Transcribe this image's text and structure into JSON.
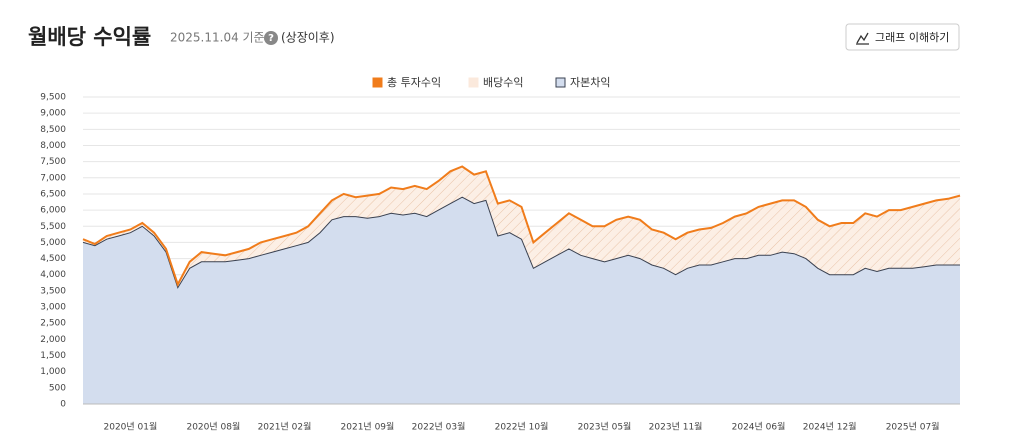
{
  "header": {
    "title": "월배당 수익률",
    "date": "2025.11.04 기준",
    "help": "?",
    "note": "(상장이후)",
    "button": "그래프 이해하기"
  },
  "chart_data": {
    "type": "line",
    "categories": [
      null,
      null,
      null,
      null,
      "2020년 01월",
      null,
      null,
      null,
      null,
      null,
      null,
      "2020년 08월",
      null,
      null,
      null,
      null,
      null,
      "2021년 02월",
      null,
      null,
      null,
      null,
      null,
      null,
      "2021년 09월",
      null,
      null,
      null,
      null,
      null,
      "2022년 03월",
      null,
      null,
      null,
      null,
      null,
      null,
      "2022년 10월",
      null,
      null,
      null,
      null,
      null,
      null,
      "2023년 05월",
      null,
      null,
      null,
      null,
      null,
      "2023년 11월",
      null,
      null,
      null,
      null,
      null,
      null,
      "2024년 06월",
      null,
      null,
      null,
      null,
      null,
      "2024년 12월",
      null,
      null,
      null,
      null,
      null,
      null,
      "2025년 07월",
      null,
      null,
      null,
      null
    ],
    "series": [
      {
        "name": "총 투자수익",
        "color": "#f07c1b",
        "values": [
          5100,
          4950,
          5200,
          5300,
          5400,
          5600,
          5300,
          4800,
          3700,
          4400,
          4700,
          4650,
          4600,
          4700,
          4800,
          5000,
          5100,
          5200,
          5300,
          5500,
          5900,
          6300,
          6500,
          6400,
          6450,
          6500,
          6700,
          6650,
          6750,
          6650,
          6900,
          7200,
          7350,
          7100,
          7200,
          6200,
          6300,
          6100,
          5000,
          5300,
          5600,
          5900,
          5700,
          5500,
          5500,
          5700,
          5800,
          5700,
          5400,
          5300,
          5100,
          5300,
          5400,
          5450,
          5600,
          5800,
          5900,
          6100,
          6200,
          6300,
          6300,
          6100,
          5700,
          5500,
          5600,
          5600,
          5900,
          5800,
          6000,
          6000,
          6100,
          6200,
          6300,
          6350,
          6450
        ]
      },
      {
        "name": "자본차익",
        "color": "#d3ddee",
        "values": [
          5000,
          4900,
          5100,
          5200,
          5300,
          5500,
          5200,
          4700,
          3600,
          4200,
          4400,
          4400,
          4400,
          4450,
          4500,
          4600,
          4700,
          4800,
          4900,
          5000,
          5300,
          5700,
          5800,
          5800,
          5750,
          5800,
          5900,
          5850,
          5900,
          5800,
          6000,
          6200,
          6400,
          6200,
          6300,
          5200,
          5300,
          5100,
          4200,
          4400,
          4600,
          4800,
          4600,
          4500,
          4400,
          4500,
          4600,
          4500,
          4300,
          4200,
          4000,
          4200,
          4300,
          4300,
          4400,
          4500,
          4500,
          4600,
          4600,
          4700,
          4650,
          4500,
          4200,
          4000,
          4000,
          4000,
          4200,
          4100,
          4200,
          4200,
          4200,
          4250,
          4300,
          4300,
          4300
        ]
      }
    ],
    "area_between": {
      "name": "배당수익",
      "color": "#fbe9dc"
    },
    "ylim": [
      0,
      9500
    ],
    "yticks": [
      0,
      500,
      {
        "value": 1000,
        "label": "1,000"
      },
      {
        "value": 1500,
        "label": "1,500"
      },
      {
        "value": 2000,
        "label": "2,000"
      },
      {
        "value": 2500,
        "label": "2,500"
      },
      {
        "value": 3000,
        "label": "3,000"
      },
      {
        "value": 3500,
        "label": "3,500"
      },
      {
        "value": 4000,
        "label": "4,000"
      },
      {
        "value": 4500,
        "label": "4,500"
      },
      {
        "value": 5000,
        "label": "5,000"
      },
      {
        "value": 5500,
        "label": "5,500"
      },
      {
        "value": 6000,
        "label": "6,000"
      },
      {
        "value": 6500,
        "label": "6,500"
      },
      {
        "value": 7000,
        "label": "7,000"
      },
      {
        "value": 7500,
        "label": "7,500"
      },
      {
        "value": 8000,
        "label": "8,000"
      },
      {
        "value": 8500,
        "label": "8,500"
      },
      {
        "value": 9000,
        "label": "9,000"
      },
      {
        "value": 9500,
        "label": "9,500"
      }
    ],
    "grid": true
  }
}
